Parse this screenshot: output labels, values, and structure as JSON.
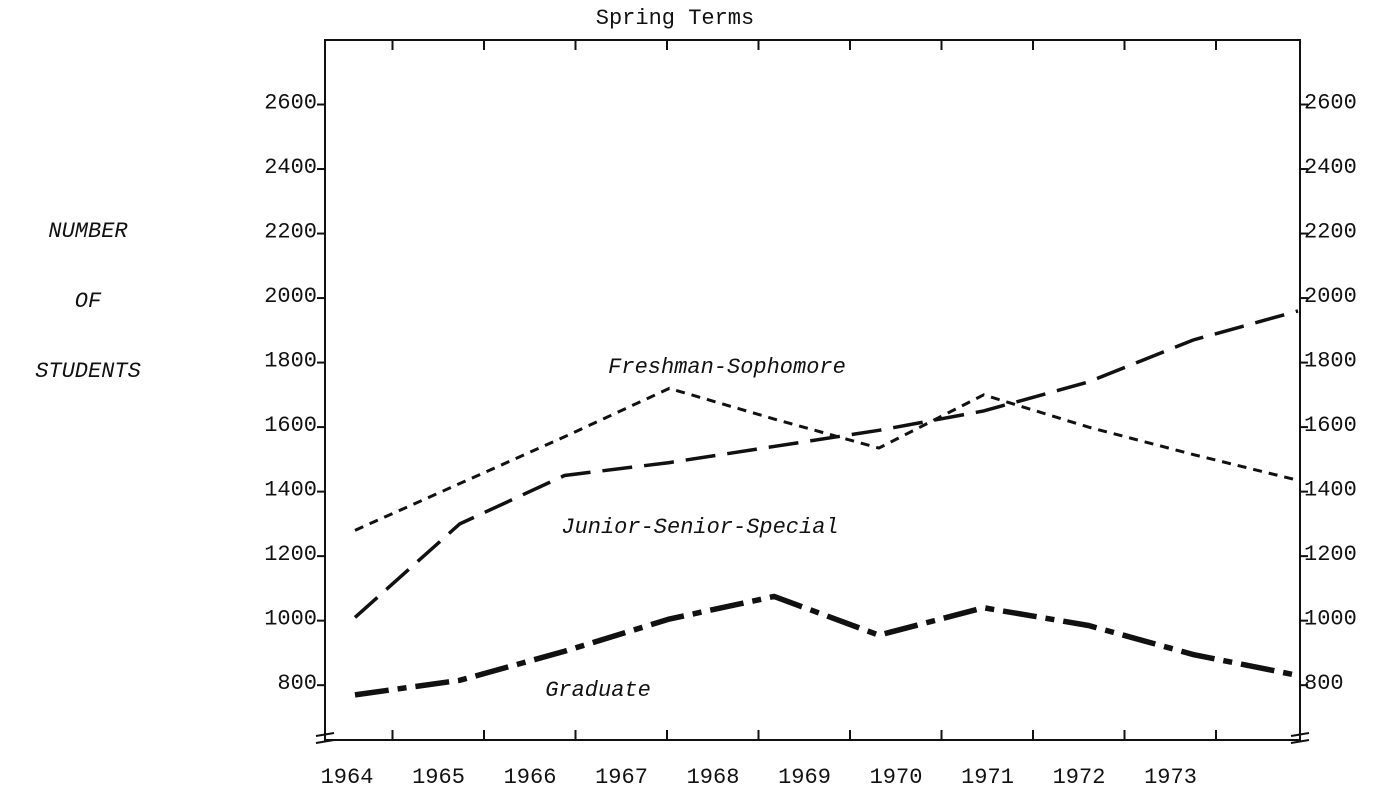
{
  "chart_data": {
    "type": "line",
    "title": "Spring Terms",
    "y_label": [
      "NUMBER",
      "OF",
      "STUDENTS"
    ],
    "categories": [
      "1964",
      "1965",
      "1966",
      "1967",
      "1968",
      "1969",
      "1970",
      "1971",
      "1972",
      "1973"
    ],
    "series": [
      {
        "name": "Freshman-Sophomore",
        "color": "#111111",
        "dash": "9 7",
        "values": [
          1280,
          1425,
          1570,
          1720,
          1625,
          1535,
          1700,
          1600,
          1515,
          1435
        ]
      },
      {
        "name": "Junior-Senior-Special",
        "color": "#111111",
        "dash": "30 12",
        "values": [
          1010,
          1300,
          1450,
          1490,
          1540,
          1590,
          1650,
          1740,
          1870,
          1960
        ]
      },
      {
        "name": "Graduate",
        "color": "#111111",
        "dash": "34 9 9 9",
        "values": [
          770,
          815,
          905,
          1005,
          1075,
          955,
          1040,
          985,
          895,
          830
        ]
      }
    ],
    "ylim": [
      630,
      2800
    ],
    "yticks": [
      800,
      1000,
      1200,
      1400,
      1600,
      1800,
      2000,
      2200,
      2400,
      2600
    ]
  }
}
